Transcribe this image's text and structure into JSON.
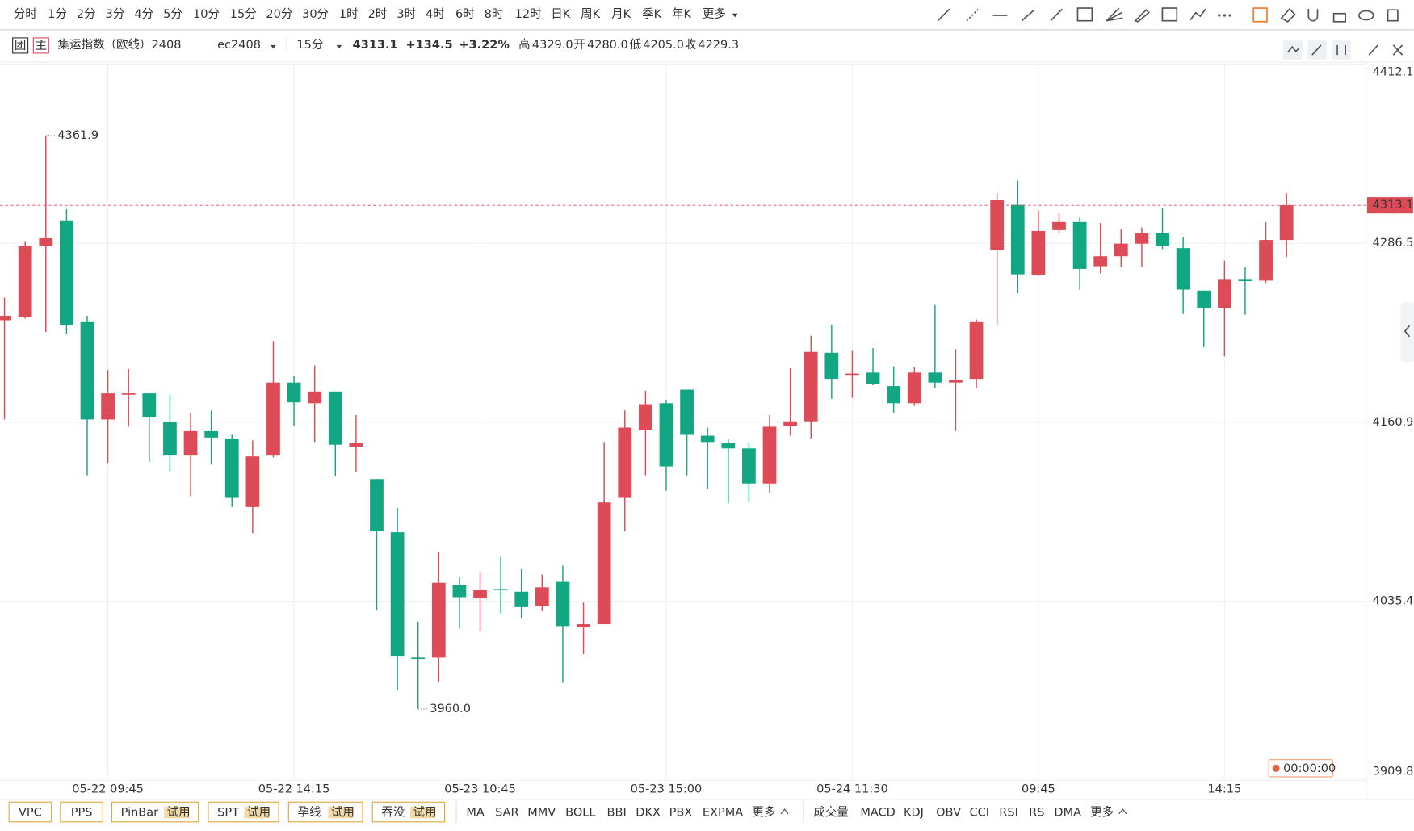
{
  "toolbar": {
    "periods": [
      "分时",
      "1分",
      "2分",
      "3分",
      "4分",
      "5分",
      "10分",
      "15分",
      "20分",
      "30分",
      "1时",
      "2时",
      "3时",
      "4时",
      "6时",
      "8时",
      "12时",
      "日K",
      "周K",
      "月K",
      "季K",
      "年K",
      "更多"
    ]
  },
  "header": {
    "badge1": "团",
    "badge2": "主",
    "name": "集运指数（欧线）2408",
    "code": "ec2408",
    "period": "15分",
    "change": "+134.5",
    "pct": "+3.22%",
    "high_label": "高",
    "high": "4329.0",
    "open_label": "开",
    "open": "4280.0",
    "low_label": "低",
    "low": "4205.0",
    "close_label": "收",
    "close": "4229.3"
  },
  "chart_data": {
    "type": "candlestick",
    "up_color": "#dd4b57",
    "down_color": "#13a683",
    "categories": [
      null,
      null,
      null,
      null,
      null,
      "05-22 09:45",
      null,
      null,
      null,
      null,
      null,
      null,
      null,
      null,
      "05-22 14:15",
      null,
      null,
      null,
      null,
      null,
      null,
      null,
      null,
      "05-23 10:45",
      null,
      null,
      null,
      null,
      null,
      null,
      null,
      null,
      "05-23 15:00",
      null,
      null,
      null,
      null,
      null,
      null,
      null,
      null,
      "05-24 11:30",
      null,
      null,
      null,
      null,
      null,
      null,
      null,
      null,
      "09:45",
      null,
      null,
      null,
      null,
      null,
      null,
      null,
      null,
      "14:15",
      null,
      null,
      null
    ],
    "open": [
      4232.5,
      4235.0,
      4284.3,
      4302.0,
      4231.2,
      4162.9,
      4180.6,
      4181.2,
      4161.0,
      4137.6,
      4154.7,
      4149.6,
      4101.5,
      4137.6,
      4188.8,
      4174.3,
      4182.5,
      4143.9,
      4121.1,
      4083.8,
      3995.9,
      3995.9,
      4046.5,
      4037.7,
      4044.0,
      4042.1,
      4032.0,
      4049.0,
      4017.4,
      4019.3,
      4107.9,
      4155.3,
      4174.3,
      4183.8,
      4151.5,
      4146.4,
      4142.6,
      4118.0,
      4158.5,
      4161.6,
      4209.7,
      4194.5,
      4195.8,
      4186.3,
      4174.3,
      4195.8,
      4188.8,
      4191.4,
      4281.8,
      4313.4,
      4264.1,
      4295.7,
      4301.4,
      4270.4,
      4277.4,
      4286.2,
      4293.8,
      4283.1,
      4253.3,
      4241.3,
      4260.9,
      4260.3,
      4288.8
    ],
    "high": [
      4248.3,
      4287.5,
      4361.9,
      4310.3,
      4235.6,
      4197.7,
      4198.3,
      4181.2,
      4180.0,
      4167.3,
      4169.2,
      4152.1,
      4148.3,
      4217.9,
      4193.2,
      4200.8,
      4182.5,
      4166.0,
      4121.1,
      4100.9,
      4021.2,
      4069.9,
      4052.2,
      4056.0,
      4066.7,
      4058.5,
      4054.1,
      4060.4,
      4034.5,
      4147.1,
      4169.2,
      4183.1,
      4176.8,
      4183.8,
      4157.2,
      4149.0,
      4146.4,
      4166.0,
      4198.9,
      4221.7,
      4229.3,
      4211.0,
      4212.9,
      4200.2,
      4199.6,
      4243.2,
      4212.2,
      4233.1,
      4321.6,
      4330.5,
      4309.6,
      4307.7,
      4304.6,
      4300.8,
      4296.3,
      4297.6,
      4310.9,
      4290.7,
      4253.3,
      4274.2,
      4269.8,
      4301.4,
      4321.6
    ],
    "low": [
      4162.9,
      4233.7,
      4224.2,
      4223.0,
      4123.7,
      4132.5,
      4157.8,
      4133.2,
      4126.8,
      4109.1,
      4131.3,
      4101.5,
      4083.2,
      4136.3,
      4158.5,
      4147.1,
      4123.0,
      4126.2,
      4029.4,
      3973.1,
      3960.0,
      3978.8,
      4016.2,
      4014.9,
      4026.9,
      4023.7,
      4028.8,
      3978.2,
      3998.4,
      4019.3,
      4084.5,
      4123.7,
      4112.9,
      4123.7,
      4114.2,
      4104.1,
      4104.7,
      4111.6,
      4151.5,
      4149.6,
      4177.4,
      4178.1,
      4186.9,
      4167.3,
      4172.4,
      4185.0,
      4154.7,
      4185.0,
      4229.3,
      4251.4,
      4263.5,
      4293.8,
      4254.0,
      4265.4,
      4269.8,
      4269.8,
      4282.4,
      4236.9,
      4213.5,
      4207.2,
      4236.3,
      4258.4,
      4276.8
    ],
    "close": [
      4235.6,
      4284.3,
      4290.0,
      4229.3,
      4162.9,
      4181.2,
      4181.2,
      4164.8,
      4137.6,
      4154.7,
      4150.2,
      4107.9,
      4137.0,
      4188.8,
      4174.9,
      4182.5,
      4145.2,
      4146.4,
      4084.5,
      3997.2,
      3995.3,
      4048.4,
      4038.3,
      4043.3,
      4043.3,
      4031.3,
      4045.2,
      4018.0,
      4019.3,
      4104.7,
      4157.2,
      4173.6,
      4130.0,
      4152.1,
      4147.1,
      4142.6,
      4118.0,
      4157.8,
      4161.6,
      4210.3,
      4191.4,
      4195.1,
      4187.6,
      4174.3,
      4195.8,
      4188.8,
      4190.7,
      4231.2,
      4316.6,
      4264.7,
      4295.1,
      4301.4,
      4268.5,
      4277.4,
      4286.2,
      4293.8,
      4284.3,
      4254.0,
      4241.3,
      4260.9,
      4260.3,
      4288.8,
      4313.1
    ],
    "ylim": [
      3909.8,
      4412.1
    ],
    "yticks": [
      4412.1,
      4286.5,
      4160.9,
      4035.4,
      3909.8
    ],
    "grid": true,
    "annotations": [
      {
        "value": 4361.9,
        "label": "4361.9"
      },
      {
        "value": 3960.0,
        "label": "3960.0"
      }
    ],
    "timer": "00:00:00"
  },
  "bottom": {
    "patterns": [
      "VPC",
      "PPS",
      "PinBar",
      "SPT",
      "孕线",
      "吞没"
    ],
    "trial": "试用",
    "main_indicators": [
      "MA",
      "SAR",
      "MMV",
      "BOLL",
      "BBI",
      "DKX",
      "PBX",
      "EXPMA",
      "更多"
    ],
    "sub_indicators": [
      "成交量",
      "MACD",
      "KDJ",
      "OBV",
      "CCI",
      "RSI",
      "RS",
      "DMA",
      "更多"
    ]
  }
}
